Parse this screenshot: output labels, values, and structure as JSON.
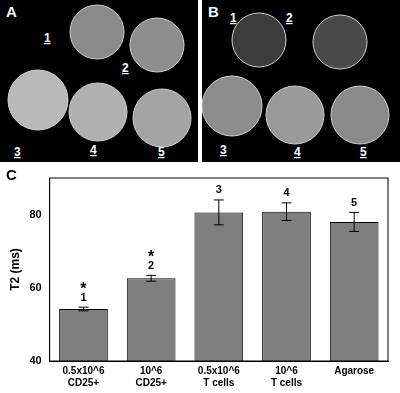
{
  "panels": [
    {
      "label": "A",
      "sample_labels": [
        "1",
        "2",
        "3",
        "4",
        "5"
      ]
    },
    {
      "label": "B",
      "sample_labels": [
        "1",
        "2",
        "3",
        "4",
        "5"
      ]
    }
  ],
  "chart_panel_label": "C",
  "chart_data": {
    "type": "bar",
    "y_label": "T2 (ms)",
    "categories": [
      "0.5x10^6 CD25+",
      "10^6 CD25+",
      "0.5x10^6 T cells",
      "10^6 T cells",
      "Agarose"
    ],
    "values": [
      54.2,
      62.6,
      80.6,
      80.8,
      78.0
    ],
    "errors": [
      0.5,
      0.8,
      3.4,
      2.4,
      2.6
    ],
    "bar_labels": [
      "1",
      "2",
      "3",
      "4",
      "5"
    ],
    "significance": [
      "*",
      "*",
      null,
      null,
      null
    ],
    "color": "#7f7f7f",
    "ylim": [
      40,
      90
    ],
    "yticks": [
      40,
      60,
      80
    ],
    "grid": false
  }
}
